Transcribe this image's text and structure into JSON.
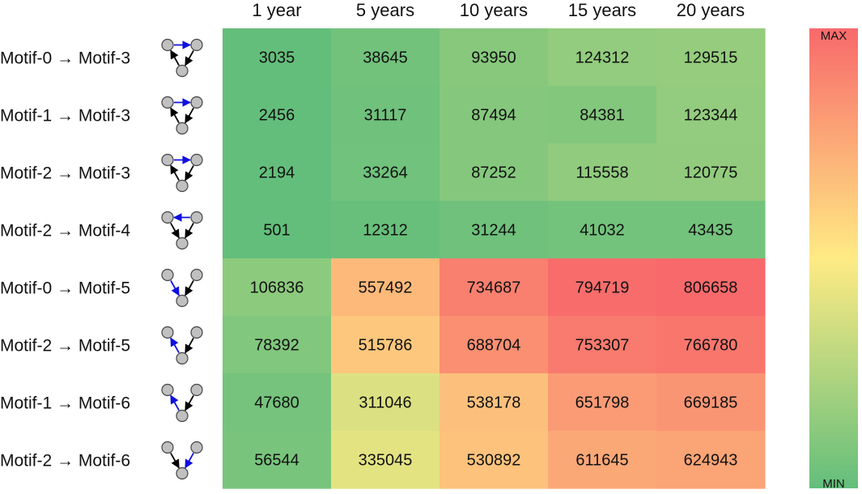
{
  "chart_data": {
    "type": "heatmap",
    "title": "",
    "xlabel": "",
    "ylabel": "",
    "columns": [
      "1 year",
      "5 years",
      "10 years",
      "15 years",
      "20 years"
    ],
    "rows": [
      {
        "label": "Motif-0 → Motif-3",
        "motif_icon": "motif-3-blue-edge-top-right-icon",
        "values": [
          3035,
          38645,
          93950,
          124312,
          129515
        ]
      },
      {
        "label": "Motif-1 → Motif-3",
        "motif_icon": "motif-3-blue-edge-top-right-icon",
        "values": [
          2456,
          31117,
          87494,
          84381,
          123344
        ]
      },
      {
        "label": "Motif-2 → Motif-3",
        "motif_icon": "motif-3-blue-edge-top-right-icon",
        "values": [
          2194,
          33264,
          87252,
          115558,
          120775
        ]
      },
      {
        "label": "Motif-2 → Motif-4",
        "motif_icon": "motif-4-blue-edge-top-left-icon",
        "values": [
          501,
          12312,
          31244,
          41032,
          43435
        ]
      },
      {
        "label": "Motif-0 → Motif-5",
        "motif_icon": "motif-5-blue-edge-left-down-icon",
        "values": [
          106836,
          557492,
          734687,
          794719,
          806658
        ]
      },
      {
        "label": "Motif-2 → Motif-5",
        "motif_icon": "motif-5-blue-edge-left-up-icon",
        "values": [
          78392,
          515786,
          688704,
          753307,
          766780
        ]
      },
      {
        "label": "Motif-1 → Motif-6",
        "motif_icon": "motif-6-blue-edge-left-up-icon",
        "values": [
          47680,
          311046,
          538178,
          651798,
          669185
        ]
      },
      {
        "label": "Motif-2 → Motif-6",
        "motif_icon": "motif-6-blue-edge-right-down-icon",
        "values": [
          56544,
          335045,
          530892,
          611645,
          624943
        ]
      }
    ],
    "colorbar": {
      "max_label": "MAX",
      "min_label": "MIN",
      "colors": [
        "#63be7b",
        "#ffeb84",
        "#f8696b"
      ]
    },
    "colors": {
      "highlight_edge": "#1010e0",
      "motif_edge": "#000000",
      "node_fill": "#c0c0c0",
      "node_stroke": "#444444"
    }
  }
}
